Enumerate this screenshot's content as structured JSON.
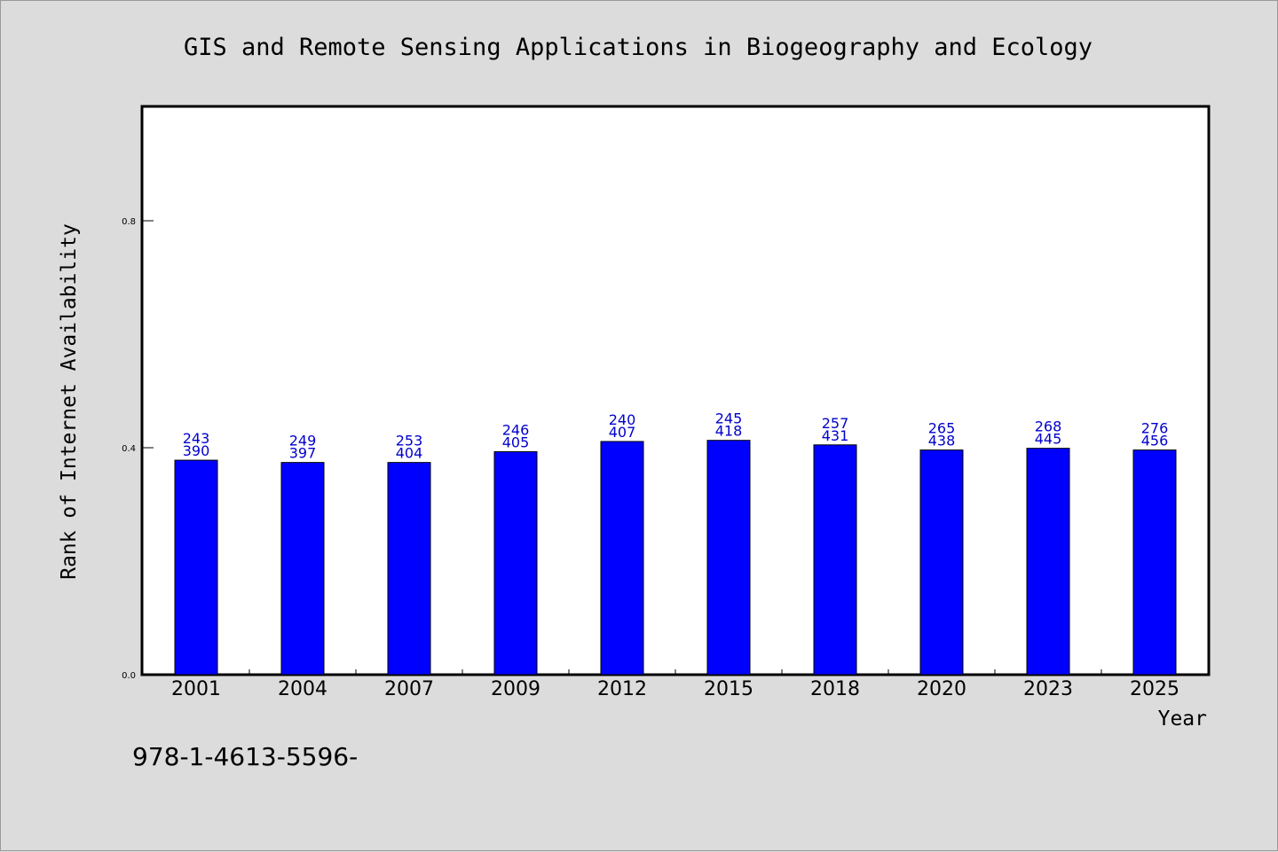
{
  "chart_data": {
    "type": "bar",
    "title": "GIS and Remote Sensing Applications in Biogeography and Ecology",
    "xlabel": "Year",
    "ylabel": "Rank of Internet Availability",
    "categories": [
      "2001",
      "2004",
      "2007",
      "2009",
      "2012",
      "2015",
      "2018",
      "2020",
      "2023",
      "2025"
    ],
    "values": [
      0.378,
      0.374,
      0.374,
      0.393,
      0.411,
      0.413,
      0.405,
      0.396,
      0.399,
      0.396
    ],
    "data_labels_top": [
      "243",
      "249",
      "253",
      "246",
      "240",
      "245",
      "257",
      "265",
      "268",
      "276"
    ],
    "data_labels_bottom": [
      "390",
      "397",
      "404",
      "405",
      "407",
      "418",
      "431",
      "438",
      "445",
      "456"
    ],
    "ylim": [
      0,
      1.0
    ],
    "yticks": [
      0.0,
      0.4,
      0.8
    ],
    "ytick_labels": [
      "0.0",
      "0.4",
      "0.8"
    ],
    "grid": false,
    "bar_color": "#0000ff",
    "label_color": "#0000cc",
    "background_color": "#dcdcdc",
    "plot_background_color": "#ffffff"
  },
  "footer": {
    "text": "978-1-4613-5596-"
  }
}
